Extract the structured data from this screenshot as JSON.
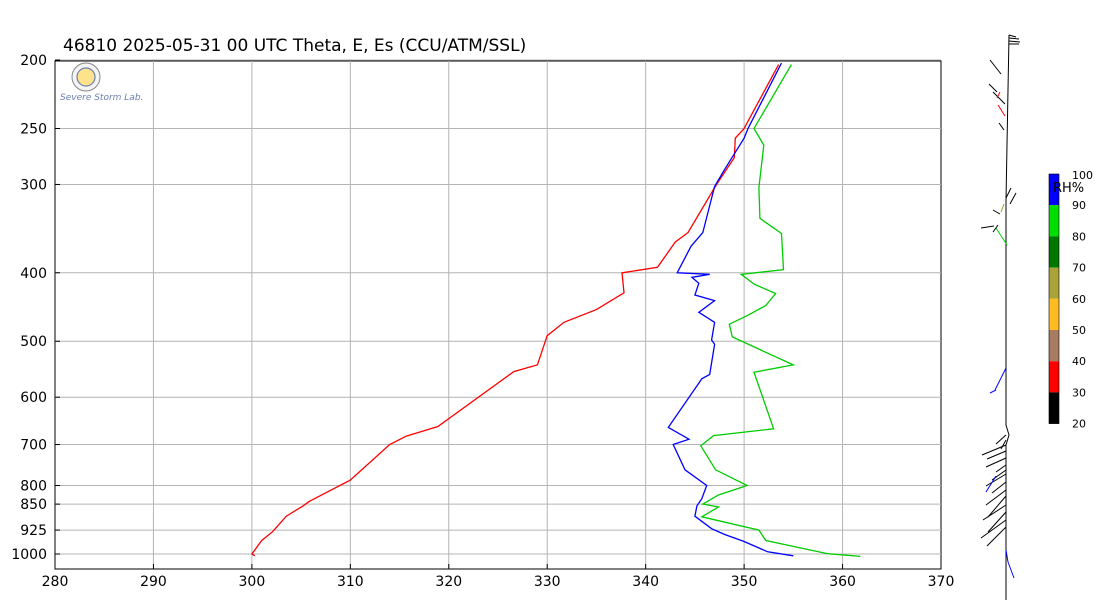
{
  "title": "46810  2025-05-31 00 UTC  Theta, E, Es (CCU/ATM/SSL)",
  "logo": {
    "text": "Severe Storm Lab."
  },
  "chart_data": {
    "type": "line",
    "title": "46810  2025-05-31 00 UTC  Theta, E, Es (CCU/ATM/SSL)",
    "xlim": [
      280,
      370
    ],
    "xticks": [
      280,
      290,
      300,
      310,
      320,
      330,
      340,
      350,
      360,
      370
    ],
    "y_scale": "log-pressure",
    "ylim": [
      1000,
      200
    ],
    "yticks": [
      200,
      250,
      300,
      400,
      500,
      600,
      700,
      800,
      850,
      925,
      1000
    ],
    "grid": true,
    "series": [
      {
        "color": "#ff0000",
        "points": [
          [
            300.3,
            1006
          ],
          [
            300.0,
            1000
          ],
          [
            301.0,
            957
          ],
          [
            302.1,
            930
          ],
          [
            303.5,
            884
          ],
          [
            305.2,
            855
          ],
          [
            305.8,
            843
          ],
          [
            310.0,
            786
          ],
          [
            314.0,
            700
          ],
          [
            315.7,
            681
          ],
          [
            318.9,
            660
          ],
          [
            326.6,
            552
          ],
          [
            329.0,
            540
          ],
          [
            330.0,
            491
          ],
          [
            331.7,
            470
          ],
          [
            335.0,
            451
          ],
          [
            337.8,
            427
          ],
          [
            337.6,
            400
          ],
          [
            341.2,
            393
          ],
          [
            343.0,
            362
          ],
          [
            344.3,
            351
          ],
          [
            347.2,
            300
          ],
          [
            349.0,
            275
          ],
          [
            349.1,
            258
          ],
          [
            350.0,
            250
          ],
          [
            353.5,
            203
          ]
        ]
      },
      {
        "color": "#0000ff",
        "points": [
          [
            355.0,
            1006
          ],
          [
            352.4,
            993
          ],
          [
            350.0,
            960
          ],
          [
            348.0,
            938
          ],
          [
            346.7,
            921
          ],
          [
            345.0,
            884
          ],
          [
            345.2,
            855
          ],
          [
            345.7,
            835
          ],
          [
            346.2,
            800
          ],
          [
            344.0,
            760
          ],
          [
            342.8,
            700
          ],
          [
            344.4,
            688
          ],
          [
            342.3,
            662
          ],
          [
            345.7,
            565
          ],
          [
            346.5,
            557
          ],
          [
            347.0,
            505
          ],
          [
            346.7,
            498
          ],
          [
            347.0,
            470
          ],
          [
            345.4,
            455
          ],
          [
            347.0,
            438
          ],
          [
            345.0,
            430
          ],
          [
            345.4,
            414
          ],
          [
            344.7,
            406
          ],
          [
            346.5,
            402
          ],
          [
            343.2,
            400
          ],
          [
            344.6,
            367
          ],
          [
            345.8,
            351
          ],
          [
            347.0,
            302
          ],
          [
            348.0,
            286
          ],
          [
            350.0,
            258
          ],
          [
            350.4,
            250
          ],
          [
            353.8,
            202
          ]
        ]
      },
      {
        "color": "#00cc00",
        "points": [
          [
            361.8,
            1008
          ],
          [
            358.5,
            999
          ],
          [
            352.2,
            957
          ],
          [
            351.5,
            925
          ],
          [
            345.7,
            886
          ],
          [
            347.4,
            858
          ],
          [
            345.8,
            850
          ],
          [
            347.4,
            825
          ],
          [
            350.3,
            800
          ],
          [
            347.1,
            760
          ],
          [
            345.6,
            703
          ],
          [
            346.9,
            680
          ],
          [
            353.0,
            665
          ],
          [
            351.0,
            553
          ],
          [
            355.0,
            540
          ],
          [
            348.8,
            493
          ],
          [
            348.5,
            473
          ],
          [
            350.3,
            460
          ],
          [
            352.2,
            445
          ],
          [
            353.2,
            428
          ],
          [
            351.0,
            415
          ],
          [
            349.7,
            402
          ],
          [
            354.0,
            396
          ],
          [
            353.8,
            352
          ],
          [
            351.6,
            335
          ],
          [
            351.5,
            303
          ],
          [
            352.0,
            264
          ],
          [
            351.0,
            250
          ],
          [
            354.8,
            203
          ]
        ]
      }
    ]
  },
  "rh_scale": {
    "label": "RH%",
    "ticks": [
      "100",
      "90",
      "80",
      "70",
      "60",
      "50",
      "40",
      "30",
      "20"
    ],
    "colors": [
      "#0000ff",
      "#00dd00",
      "#007700",
      "#a8a43a",
      "#ffbb22",
      "#a87c62",
      "#ff0000",
      "#000000"
    ]
  },
  "wind_profile": {
    "mast": [
      [
        1006,
        200
      ],
      [
        1006,
        425
      ],
      [
        1009,
        435
      ],
      [
        1006,
        445
      ],
      [
        1006,
        600
      ]
    ],
    "barbs": [
      {
        "color": "#000000",
        "segs": [
          [
            1006,
            200,
            1009,
            35
          ],
          [
            1009,
            35,
            1016,
            37
          ],
          [
            1009,
            38,
            1019,
            39
          ],
          [
            1009,
            41,
            1020,
            42
          ],
          [
            1009,
            44,
            1019,
            44
          ]
        ]
      },
      {
        "color": "#000000",
        "segs": [
          [
            1001,
            74,
            990,
            60
          ],
          [
            997,
            92,
            989,
            84
          ],
          [
            1005,
            104,
            993,
            92
          ]
        ]
      },
      {
        "color": "#ff0000",
        "segs": [
          [
            997,
            98,
            1000,
            92
          ],
          [
            1005,
            116,
            998,
            105
          ]
        ]
      },
      {
        "color": "#000000",
        "segs": [
          [
            1004,
            130,
            999,
            123
          ],
          [
            1011,
            188,
            1006,
            198
          ],
          [
            1016,
            193,
            1010,
            204
          ]
        ]
      },
      {
        "color": "#999933",
        "segs": [
          [
            1004,
            204,
            1001,
            212
          ]
        ]
      },
      {
        "color": "#000000",
        "segs": [
          [
            1000,
            214,
            993,
            210
          ],
          [
            994,
            226,
            981,
            228
          ]
        ]
      },
      {
        "color": "#00cc00",
        "segs": [
          [
            996,
            228,
            1007,
            245
          ]
        ]
      },
      {
        "color": "#000000",
        "segs": [
          [
            998,
            225,
            993,
            232
          ]
        ]
      },
      {
        "color": "#0000ff",
        "segs": [
          [
            1006,
            368,
            995,
            390
          ],
          [
            996,
            390,
            990,
            393
          ]
        ]
      },
      {
        "color": "#000000",
        "segs": [
          [
            1006,
            435,
            996,
            444
          ],
          [
            1006,
            440,
            1001,
            449
          ],
          [
            1006,
            445,
            982,
            455
          ],
          [
            1006,
            451,
            987,
            459
          ],
          [
            1006,
            458,
            986,
            467
          ]
        ]
      },
      {
        "color": "#000000",
        "segs": [
          [
            1006,
            465,
            996,
            472
          ],
          [
            1006,
            470,
            992,
            480
          ],
          [
            1006,
            474,
            986,
            486
          ],
          [
            1006,
            482,
            992,
            493
          ],
          [
            1006,
            490,
            986,
            505
          ],
          [
            1006,
            496,
            988,
            517
          ],
          [
            1006,
            505,
            983,
            520
          ],
          [
            1006,
            512,
            988,
            532
          ],
          [
            1006,
            520,
            981,
            538
          ],
          [
            1006,
            527,
            987,
            546
          ]
        ]
      },
      {
        "color": "#0000ff",
        "segs": [
          [
            996,
            476,
            986,
            492
          ],
          [
            1006,
            550,
            1008,
            562
          ],
          [
            1008,
            562,
            1014,
            578
          ]
        ]
      }
    ]
  }
}
